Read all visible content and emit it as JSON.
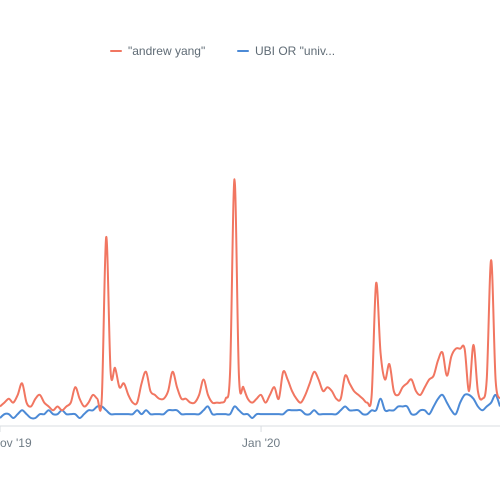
{
  "chart_data": {
    "type": "line",
    "title": "",
    "xlabel": "",
    "ylabel": "",
    "x_tick_labels": [
      {
        "label": "ov '19",
        "index": 0
      },
      {
        "label": "Jan '20",
        "index": 59
      }
    ],
    "grid": false,
    "legend_position": "top",
    "series": [
      {
        "name": "\"andrew yang\"",
        "color": "#f17661",
        "values": [
          3,
          4,
          5,
          4,
          6,
          9,
          4,
          3,
          5,
          6,
          4,
          3,
          2,
          3,
          2,
          3,
          4,
          8,
          5,
          3,
          4,
          6,
          5,
          5,
          47,
          12,
          13,
          8,
          9,
          6,
          4,
          4,
          9,
          12,
          7,
          6,
          5,
          5,
          7,
          12,
          8,
          5,
          5,
          4,
          4,
          6,
          10,
          6,
          4,
          4,
          4,
          5,
          12,
          62,
          11,
          8,
          5,
          4,
          5,
          6,
          4,
          6,
          8,
          5,
          12,
          10,
          7,
          5,
          4,
          6,
          9,
          12,
          10,
          7,
          8,
          7,
          5,
          5,
          11,
          9,
          7,
          6,
          5,
          4,
          6,
          35,
          17,
          10,
          14,
          7,
          6,
          8,
          9,
          10,
          7,
          6,
          8,
          10,
          11,
          15,
          17,
          11,
          16,
          18,
          18,
          18,
          7,
          19,
          7,
          5,
          10,
          41,
          10,
          5
        ]
      },
      {
        "name": "UBI OR \"univ...",
        "color": "#4c8ad6",
        "values": [
          0,
          1,
          1,
          0,
          1,
          2,
          1,
          0,
          0,
          1,
          1,
          2,
          1,
          1,
          2,
          1,
          1,
          1,
          0,
          1,
          2,
          2,
          3,
          3,
          2,
          1,
          1,
          1,
          1,
          1,
          1,
          2,
          1,
          2,
          1,
          1,
          1,
          1,
          2,
          2,
          2,
          1,
          1,
          1,
          1,
          1,
          2,
          3,
          1,
          1,
          1,
          1,
          1,
          3,
          2,
          1,
          1,
          0,
          1,
          1,
          1,
          1,
          1,
          1,
          1,
          2,
          2,
          2,
          2,
          1,
          1,
          2,
          1,
          1,
          1,
          1,
          1,
          2,
          3,
          2,
          2,
          2,
          1,
          1,
          2,
          2,
          5,
          2,
          2,
          2,
          3,
          3,
          3,
          1,
          1,
          2,
          2,
          1,
          3,
          5,
          6,
          4,
          2,
          1,
          4,
          6,
          6,
          5,
          3,
          2,
          3,
          4,
          6,
          3
        ]
      }
    ]
  }
}
